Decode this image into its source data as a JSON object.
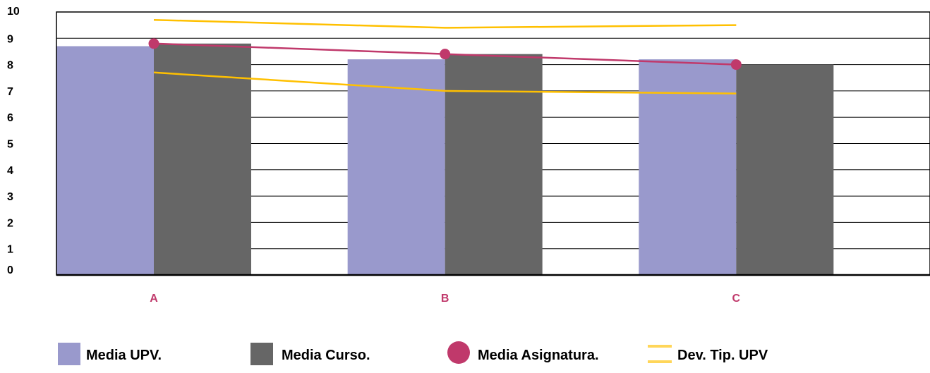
{
  "chart_data": {
    "type": "bar",
    "categories": [
      "A",
      "B",
      "C"
    ],
    "ylim": [
      0,
      10
    ],
    "yticks": [
      "0",
      "1",
      "2",
      "3",
      "4",
      "5",
      "6",
      "7",
      "8",
      "9",
      "10"
    ],
    "grid": true,
    "legend_position": "bottom",
    "series": [
      {
        "name": "Media UPV.",
        "kind": "bar",
        "color": "#9999cc",
        "values": [
          8.7,
          8.2,
          8.2
        ]
      },
      {
        "name": "Media Curso.",
        "kind": "bar",
        "color": "#666666",
        "values": [
          8.8,
          8.4,
          8.0
        ]
      },
      {
        "name": "Media Asignatura.",
        "kind": "line-marker",
        "color": "#c0396b",
        "values": [
          8.8,
          8.4,
          8.0
        ]
      },
      {
        "name": "Dev. Tip. UPV",
        "kind": "band",
        "color": "#ffc000",
        "upper": [
          9.7,
          9.4,
          9.5
        ],
        "lower": [
          7.7,
          7.0,
          6.9
        ]
      }
    ],
    "xtick_color": "#c0396b"
  }
}
